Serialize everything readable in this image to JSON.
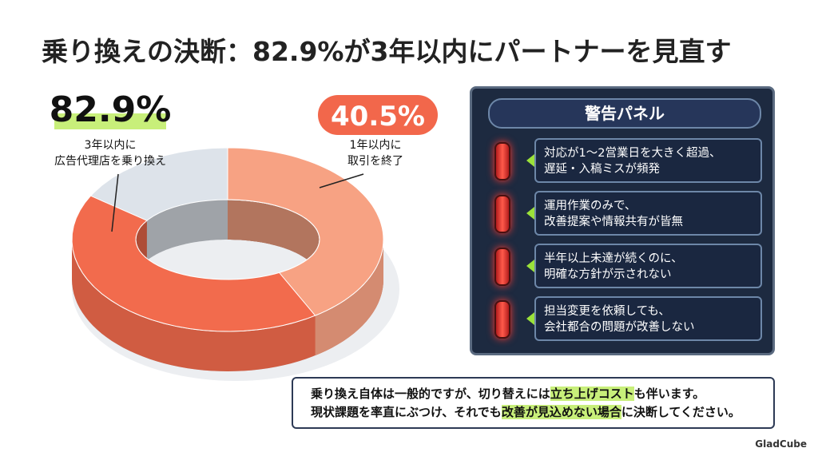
{
  "title": "乗り換えの決断：82.9%が3年以内にパートナーを見直す",
  "chart_data": {
    "type": "donut",
    "values": [
      82.9,
      40.5
    ],
    "value_labels": [
      "82.9%",
      "40.5%"
    ],
    "labels": [
      [
        "3年以内に",
        "広告代理店を乗り換え"
      ],
      [
        "1年以内に",
        "取引を終了"
      ]
    ],
    "colors": [
      "#f26b4d",
      "#f7a283"
    ],
    "ylim": [
      0,
      100
    ]
  },
  "panel": {
    "title": "警告パネル",
    "items": [
      [
        "対応が1～2営業日を大きく超過、",
        "遅延・入稿ミスが頻発"
      ],
      [
        "運用作業のみで、",
        "改善提案や情報共有が皆無"
      ],
      [
        "半年以上未達が続くのに、",
        "明確な方針が示されない"
      ],
      [
        "担当変更を依頼しても、",
        "会社都合の問題が改善しない"
      ]
    ]
  },
  "note": {
    "lines": [
      [
        {
          "text": "乗り換え自体は一般的ですが、切り替えには",
          "highlight": false
        },
        {
          "text": "立ち上げコスト",
          "highlight": true
        },
        {
          "text": "も伴います。",
          "highlight": false
        }
      ],
      [
        {
          "text": "現状課題を率直にぶつけ、それでも",
          "highlight": false
        },
        {
          "text": "改善が見込めない場合",
          "highlight": true
        },
        {
          "text": "に決断してください。",
          "highlight": false
        }
      ]
    ]
  },
  "logo": "GladCube"
}
